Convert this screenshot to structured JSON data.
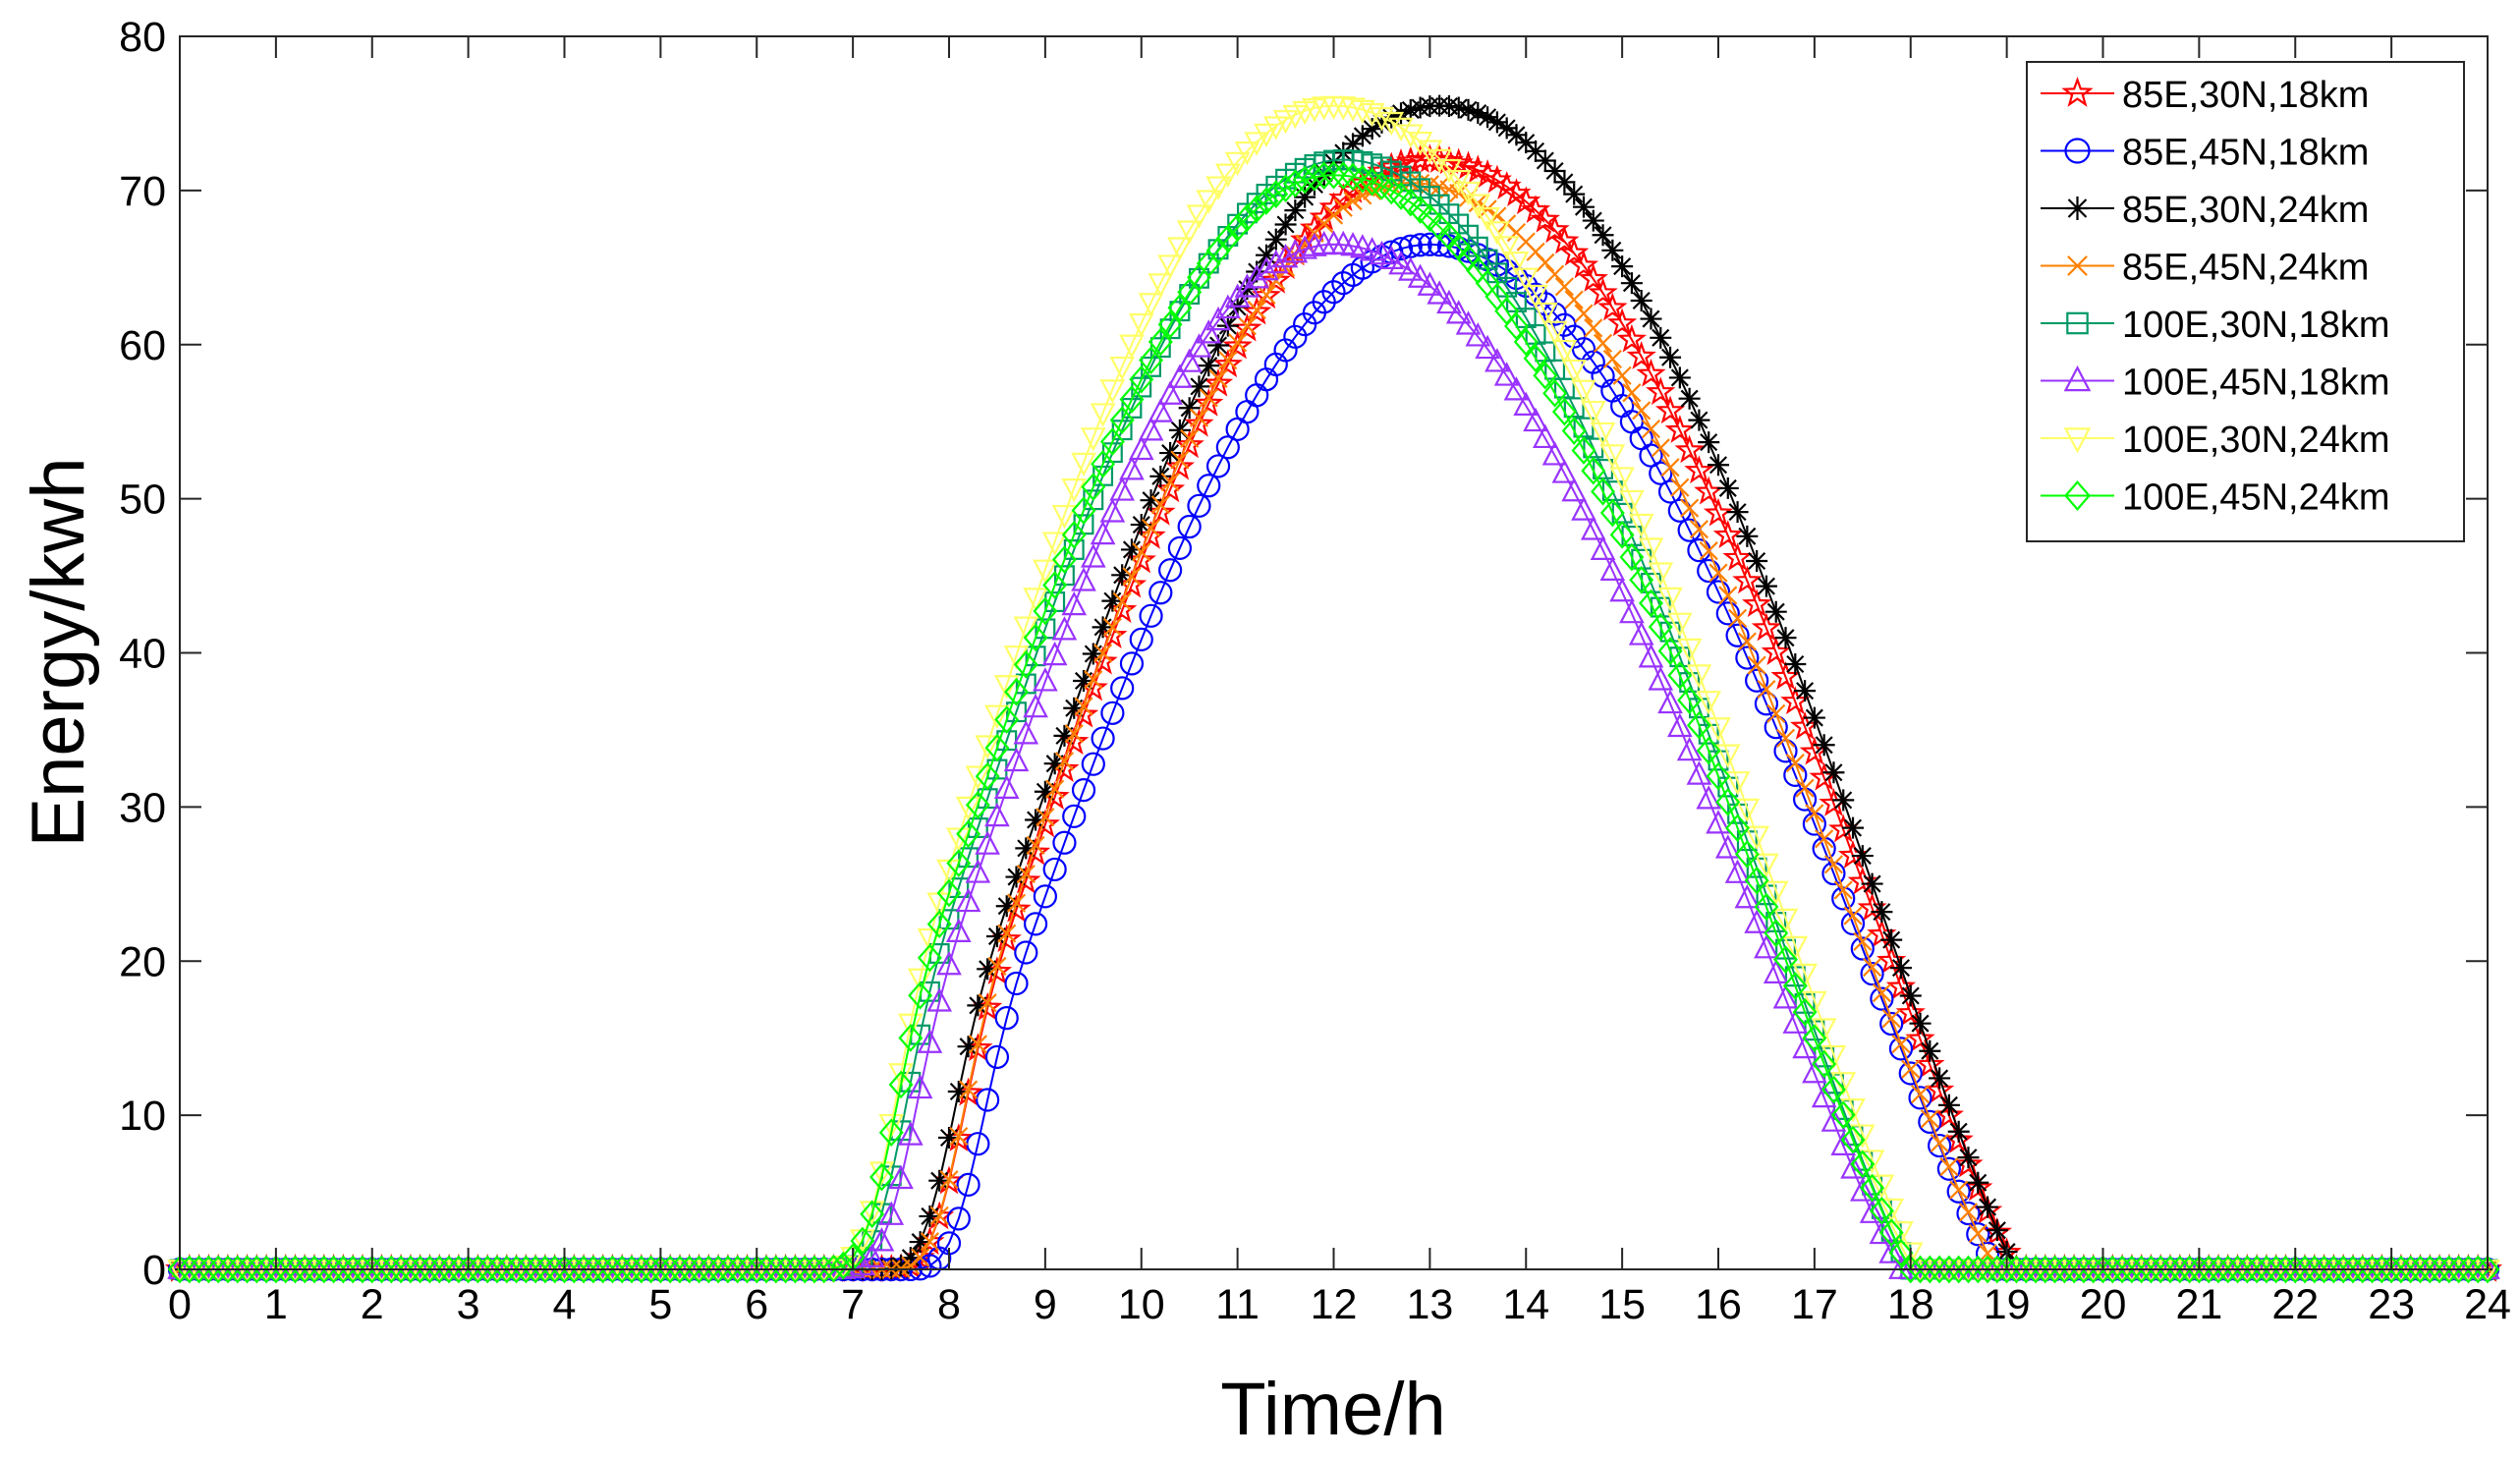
{
  "chart_data": {
    "type": "line",
    "title": "",
    "xlabel": "Time/h",
    "ylabel": "Energy/kwh",
    "xlim": [
      0,
      24
    ],
    "ylim": [
      0,
      80
    ],
    "grid": false,
    "legend_position": "top-right",
    "x_ticks": [
      "0",
      "1",
      "2",
      "3",
      "4",
      "5",
      "6",
      "7",
      "8",
      "9",
      "10",
      "11",
      "12",
      "13",
      "14",
      "15",
      "16",
      "17",
      "18",
      "19",
      "20",
      "21",
      "22",
      "23",
      "24"
    ],
    "y_ticks": [
      "0",
      "10",
      "20",
      "30",
      "40",
      "50",
      "60",
      "70",
      "80"
    ],
    "sample_step_h": 0.1,
    "series": [
      {
        "name": "85E,30N,18km",
        "color": "#ff0000",
        "marker": "pentagram",
        "sunrise": 7.3,
        "sunset": 19.1,
        "noon": 13.0,
        "peak": 72.0
      },
      {
        "name": "85E,45N,18km",
        "color": "#0000ff",
        "marker": "circle",
        "sunrise": 7.5,
        "sunset": 18.9,
        "noon": 13.0,
        "peak": 66.5
      },
      {
        "name": "85E,30N,24km",
        "color": "#000000",
        "marker": "asterisk",
        "sunrise": 7.2,
        "sunset": 19.1,
        "noon": 13.1,
        "peak": 75.5
      },
      {
        "name": "85E,45N,24km",
        "color": "#ff8000",
        "marker": "x",
        "sunrise": 7.3,
        "sunset": 18.9,
        "noon": 12.8,
        "peak": 70.5
      },
      {
        "name": "100E,30N,18km",
        "color": "#009966",
        "marker": "square",
        "sunrise": 6.7,
        "sunset": 18.0,
        "noon": 12.1,
        "peak": 72.0
      },
      {
        "name": "100E,45N,18km",
        "color": "#9933ff",
        "marker": "triangle-up",
        "sunrise": 6.8,
        "sunset": 17.9,
        "noon": 12.0,
        "peak": 66.5
      },
      {
        "name": "100E,30N,24km",
        "color": "#ffff66",
        "marker": "triangle-down",
        "sunrise": 6.6,
        "sunset": 18.1,
        "noon": 12.0,
        "peak": 75.5
      },
      {
        "name": "100E,45N,24km",
        "color": "#00ff00",
        "marker": "diamond",
        "sunrise": 6.6,
        "sunset": 18.0,
        "noon": 12.0,
        "peak": 71.0
      }
    ]
  }
}
